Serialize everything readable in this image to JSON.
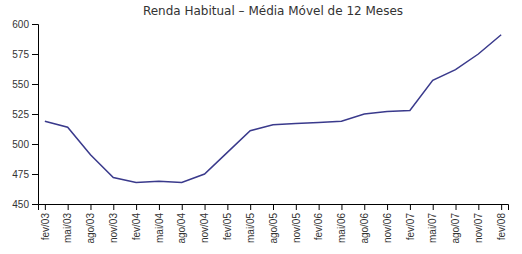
{
  "chart_data": {
    "type": "line",
    "title": "Renda Habitual – Média Móvel de 12 Meses",
    "categories": [
      "fev/03",
      "mai/03",
      "ago/03",
      "nov/03",
      "fev/04",
      "mai/04",
      "ago/04",
      "nov/04",
      "fev/05",
      "mai/05",
      "ago/05",
      "nov/05",
      "fev/06",
      "mai/06",
      "ago/06",
      "nov/06",
      "fev/07",
      "mai/07",
      "ago/07",
      "nov/07",
      "fev/08"
    ],
    "values": [
      519,
      514,
      491,
      472,
      468,
      469,
      468,
      475,
      493,
      511,
      516,
      517,
      518,
      519,
      525,
      527,
      528,
      553,
      562,
      575,
      591
    ],
    "color": "#3a3a8c",
    "ylim": [
      450,
      600
    ],
    "yticks": [
      450,
      475,
      500,
      525,
      550,
      575,
      600
    ],
    "grid": false
  }
}
